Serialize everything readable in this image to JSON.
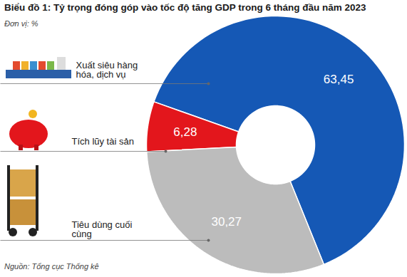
{
  "chart_data": {
    "type": "donut",
    "title": "Biểu đồ 1: Tỷ trọng đóng góp vào tốc độ tăng GDP trong 6 tháng đầu năm 2023",
    "subtitle": "Đơn vị: %",
    "source": "Nguồn: Tổng cục Thống kê",
    "categories": [
      "Xuất siêu hàng hóa, dịch vụ",
      "Tích lũy tài sản",
      "Tiêu dùng cuối cùng"
    ],
    "values": [
      63.45,
      6.28,
      30.27
    ],
    "value_labels": [
      "63,45",
      "6,28",
      "30,27"
    ],
    "colors": [
      "#1558b5",
      "#e3161c",
      "#bcbcbc"
    ],
    "data_labels": true
  }
}
